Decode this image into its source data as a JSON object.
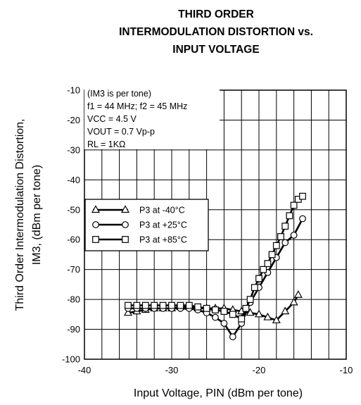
{
  "chart_data": {
    "type": "line",
    "title_lines": [
      "THIRD ORDER",
      "INTERMODULATION DISTORTION vs.",
      "INPUT VOLTAGE"
    ],
    "xlabel": "Input Voltage, PIN (dBm per tone)",
    "ylabel_lines": [
      "Third Order Intermodulation Distortion,",
      "IM3, (dBm per tone)"
    ],
    "xlim": [
      -40,
      -10
    ],
    "ylim": [
      -100,
      -10
    ],
    "x_ticks": [
      "-40",
      "-30",
      "-20",
      "-10"
    ],
    "y_ticks": [
      "-10",
      "-20",
      "-30",
      "-40",
      "-50",
      "-60",
      "-70",
      "-80",
      "-90",
      "-100"
    ],
    "grid": true,
    "notes": [
      "(IM3 is per tone)",
      "f1 = 44 MHz; f2 = 45 MHz",
      "VCC = 4.5 V",
      "VOUT = 0.7 Vp-p",
      "RL = 1KΩ"
    ],
    "legend_position": "middle-left",
    "series": [
      {
        "name": "P3 at -40°C",
        "marker": "triangle",
        "x": [
          -35,
          -34,
          -33,
          -32,
          -31,
          -30,
          -29,
          -28,
          -27,
          -26,
          -25,
          -24,
          -23,
          -22,
          -21,
          -20,
          -19,
          -18,
          -17,
          -16,
          -15.5
        ],
        "y": [
          -84.5,
          -84,
          -83.5,
          -83,
          -83,
          -83,
          -82.5,
          -82.5,
          -83,
          -83,
          -83,
          -83,
          -83.5,
          -84,
          -84.5,
          -85,
          -86,
          -87,
          -84,
          -81,
          -78.5
        ]
      },
      {
        "name": "P3 at +25°C",
        "marker": "circle",
        "x": [
          -35,
          -34,
          -33,
          -32,
          -31,
          -30,
          -29,
          -28,
          -27,
          -26,
          -25,
          -24,
          -23,
          -22,
          -21,
          -20,
          -19,
          -18,
          -17,
          -16,
          -15
        ],
        "y": [
          -83,
          -83,
          -83,
          -83,
          -83,
          -83,
          -83,
          -83,
          -83.5,
          -84.5,
          -86,
          -88,
          -92.5,
          -88,
          -81,
          -76,
          -71,
          -66,
          -61,
          -58.5,
          -53
        ]
      },
      {
        "name": "P3 at +85°C",
        "marker": "square",
        "x": [
          -35,
          -34,
          -33,
          -32,
          -31,
          -30,
          -29,
          -28,
          -27,
          -26,
          -25,
          -24,
          -23,
          -22,
          -21.5,
          -21,
          -20.5,
          -20,
          -19.5,
          -19,
          -18.5,
          -18,
          -17.5,
          -17,
          -16.5,
          -16,
          -15.5,
          -15
        ],
        "y": [
          -82,
          -82,
          -82,
          -82,
          -82,
          -82,
          -82,
          -82,
          -82.5,
          -83,
          -83.5,
          -84,
          -85,
          -86.5,
          -83,
          -80,
          -76,
          -73,
          -70,
          -68,
          -65,
          -62,
          -59,
          -55.5,
          -52,
          -48.5,
          -46.5,
          -45.5
        ]
      }
    ]
  }
}
